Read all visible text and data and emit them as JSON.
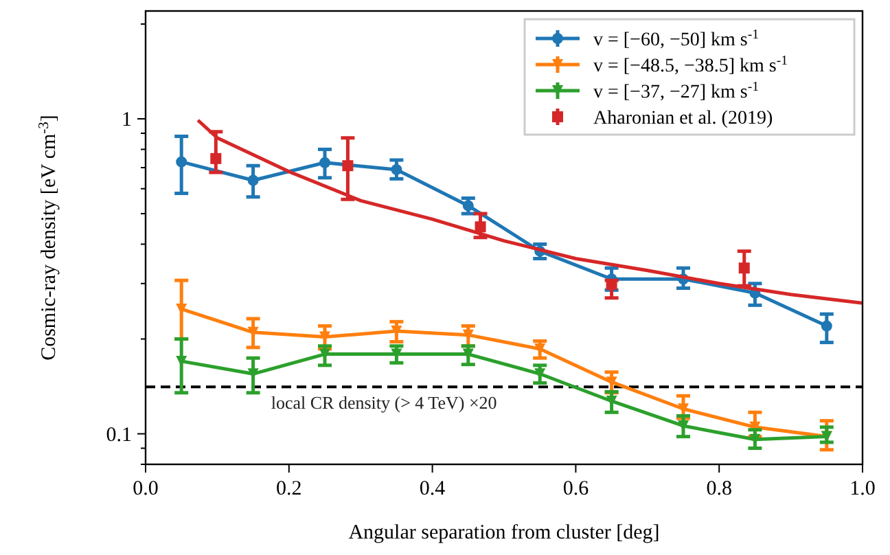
{
  "chart_data": {
    "type": "line",
    "xlabel": "Angular separation from cluster [deg]",
    "ylabel": "Cosmic-ray density [eV cm$^{-3}$]",
    "log": "y",
    "xlim": [
      0,
      1
    ],
    "xticks": [
      {
        "value": 0,
        "label": "0.0"
      },
      0.2,
      0.4,
      0.6,
      0.8,
      {
        "value": 1,
        "label": "1.0"
      }
    ],
    "ylim": [
      0.08,
      2.2
    ],
    "yticks": [
      {
        "value": 0.08,
        "label": null
      },
      {
        "value": 0.09,
        "label": null
      },
      0.1,
      {
        "value": 0.2,
        "label": null
      },
      {
        "value": 0.3,
        "label": null
      },
      {
        "value": 0.4,
        "label": null
      },
      {
        "value": 0.5,
        "label": null
      },
      {
        "value": 0.6,
        "label": null
      },
      {
        "value": 0.7,
        "label": null
      },
      {
        "value": 0.8,
        "label": null
      },
      {
        "value": 0.9,
        "label": null
      },
      1,
      {
        "value": 2,
        "label": null
      }
    ],
    "legend": "top right",
    "grid": false,
    "ref_lines": [
      {
        "axis": "y",
        "value": 0.141,
        "label": "local CR density (> 4 TeV) ×20",
        "color": "#000000",
        "line_style": "dashed"
      }
    ],
    "series": [
      {
        "name": "v = [−60, −50] km s$^{-1}$",
        "color": "#1f77b4",
        "marker": "circle",
        "x": [
          0.05,
          0.15,
          0.25,
          0.35,
          0.45,
          0.55,
          0.65,
          0.75,
          0.85,
          0.95
        ],
        "values": [
          0.73,
          0.638,
          0.726,
          0.69,
          0.53,
          0.38,
          0.31,
          0.31,
          0.28,
          0.22
        ],
        "errors": [
          [
            0.58,
            0.88
          ],
          [
            0.565,
            0.71
          ],
          [
            0.65,
            0.8
          ],
          [
            0.645,
            0.74
          ],
          [
            0.5,
            0.56
          ],
          [
            0.36,
            0.4
          ],
          [
            0.286,
            0.336
          ],
          [
            0.29,
            0.336
          ],
          [
            0.256,
            0.3
          ],
          [
            0.195,
            0.24
          ]
        ]
      },
      {
        "name": "v = [−48.5, −38.5] km s$^{-1}$",
        "color": "#ff7f0e",
        "marker": "triangle",
        "x": [
          0.05,
          0.15,
          0.25,
          0.35,
          0.45,
          0.55,
          0.65,
          0.75,
          0.85,
          0.95
        ],
        "values": [
          0.249,
          0.21,
          0.203,
          0.212,
          0.206,
          0.186,
          0.146,
          0.12,
          0.105,
          0.098
        ],
        "errors": [
          [
            0.2,
            0.307
          ],
          [
            0.188,
            0.232
          ],
          [
            0.186,
            0.22
          ],
          [
            0.196,
            0.227
          ],
          [
            0.19,
            0.22
          ],
          [
            0.174,
            0.197
          ],
          [
            0.135,
            0.157
          ],
          [
            0.112,
            0.132
          ],
          [
            0.098,
            0.117
          ],
          [
            0.089,
            0.11
          ]
        ]
      },
      {
        "name": "v = [−37, −27] km s$^{-1}$",
        "color": "#2ca02c",
        "marker": "triangle",
        "x": [
          0.05,
          0.15,
          0.25,
          0.35,
          0.45,
          0.55,
          0.65,
          0.75,
          0.85,
          0.95
        ],
        "values": [
          0.17,
          0.155,
          0.179,
          0.179,
          0.179,
          0.155,
          0.127,
          0.106,
          0.096,
          0.098
        ],
        "errors": [
          [
            0.135,
            0.2
          ],
          [
            0.135,
            0.174
          ],
          [
            0.165,
            0.19
          ],
          [
            0.168,
            0.19
          ],
          [
            0.166,
            0.19
          ],
          [
            0.145,
            0.165
          ],
          [
            0.117,
            0.136
          ],
          [
            0.098,
            0.114
          ],
          [
            0.09,
            0.103
          ],
          [
            0.094,
            0.105
          ]
        ]
      },
      {
        "name": "Aharonian et al. (2019)",
        "type": "scatter",
        "color": "#d62728",
        "marker": "square",
        "x": [
          0.098,
          0.282,
          0.467,
          0.65,
          0.835
        ],
        "values": [
          0.748,
          0.71,
          0.454,
          0.298,
          0.336
        ],
        "errors": [
          [
            0.676,
            0.91
          ],
          [
            0.555,
            0.87
          ],
          [
            0.42,
            0.5
          ],
          [
            0.27,
            0.307
          ],
          [
            0.295,
            0.38
          ]
        ]
      },
      {
        "color": "#d62728",
        "marker": "none",
        "x": [
          0.073,
          0.1,
          0.2,
          0.3,
          0.4,
          0.5,
          0.6,
          0.7,
          0.8,
          0.9,
          1.0
        ],
        "values": [
          0.99,
          0.87,
          0.68,
          0.55,
          0.48,
          0.41,
          0.36,
          0.33,
          0.3,
          0.277,
          0.26
        ]
      }
    ]
  }
}
